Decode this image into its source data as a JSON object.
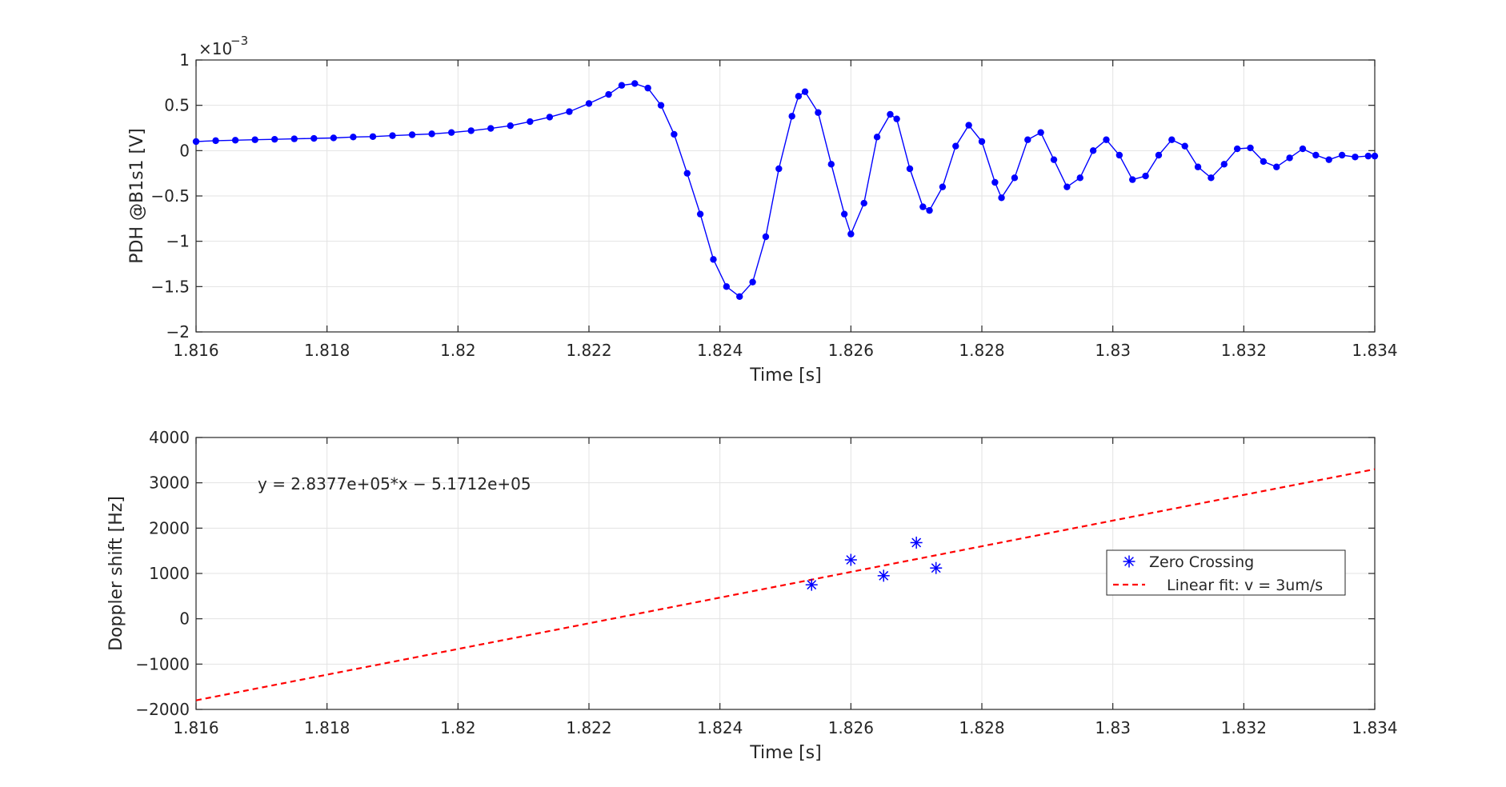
{
  "chart_data": [
    {
      "type": "line",
      "xlabel": "Time [s]",
      "ylabel": "PDH @B1s1 [V]",
      "exponent_label": "×10",
      "exponent_power": "−3",
      "xlim": [
        1.816,
        1.834
      ],
      "ylim": [
        -2,
        1
      ],
      "xticks": [
        "1.816",
        "1.818",
        "1.82",
        "1.822",
        "1.824",
        "1.826",
        "1.828",
        "1.83",
        "1.832",
        "1.834"
      ],
      "yticks": [
        "1",
        "0.5",
        "0",
        "−0.5",
        "−1",
        "−1.5",
        "−2"
      ],
      "grid": true,
      "series": [
        {
          "color": "#0000ff",
          "marker": "dot",
          "points": [
            [
              1.816,
              0.1
            ],
            [
              1.8163,
              0.11
            ],
            [
              1.8166,
              0.115
            ],
            [
              1.8169,
              0.12
            ],
            [
              1.8172,
              0.125
            ],
            [
              1.8175,
              0.13
            ],
            [
              1.8178,
              0.135
            ],
            [
              1.8181,
              0.14
            ],
            [
              1.8184,
              0.15
            ],
            [
              1.8187,
              0.155
            ],
            [
              1.819,
              0.165
            ],
            [
              1.8193,
              0.175
            ],
            [
              1.8196,
              0.185
            ],
            [
              1.8199,
              0.2
            ],
            [
              1.8202,
              0.22
            ],
            [
              1.8205,
              0.245
            ],
            [
              1.8208,
              0.275
            ],
            [
              1.8211,
              0.32
            ],
            [
              1.8214,
              0.37
            ],
            [
              1.8217,
              0.43
            ],
            [
              1.822,
              0.52
            ],
            [
              1.8223,
              0.62
            ],
            [
              1.8225,
              0.72
            ],
            [
              1.8227,
              0.74
            ],
            [
              1.8229,
              0.69
            ],
            [
              1.8231,
              0.5
            ],
            [
              1.8233,
              0.18
            ],
            [
              1.8235,
              -0.25
            ],
            [
              1.8237,
              -0.7
            ],
            [
              1.8239,
              -1.2
            ],
            [
              1.8241,
              -1.5
            ],
            [
              1.8243,
              -1.61
            ],
            [
              1.8245,
              -1.45
            ],
            [
              1.8247,
              -0.95
            ],
            [
              1.8249,
              -0.2
            ],
            [
              1.8251,
              0.38
            ],
            [
              1.8252,
              0.6
            ],
            [
              1.8253,
              0.65
            ],
            [
              1.8255,
              0.42
            ],
            [
              1.8257,
              -0.15
            ],
            [
              1.8259,
              -0.7
            ],
            [
              1.826,
              -0.92
            ],
            [
              1.8262,
              -0.58
            ],
            [
              1.8264,
              0.15
            ],
            [
              1.8266,
              0.4
            ],
            [
              1.8267,
              0.35
            ],
            [
              1.8269,
              -0.2
            ],
            [
              1.8271,
              -0.62
            ],
            [
              1.8272,
              -0.66
            ],
            [
              1.8274,
              -0.4
            ],
            [
              1.8276,
              0.05
            ],
            [
              1.8278,
              0.28
            ],
            [
              1.828,
              0.1
            ],
            [
              1.8282,
              -0.35
            ],
            [
              1.8283,
              -0.52
            ],
            [
              1.8285,
              -0.3
            ],
            [
              1.8287,
              0.12
            ],
            [
              1.8289,
              0.2
            ],
            [
              1.8291,
              -0.1
            ],
            [
              1.8293,
              -0.4
            ],
            [
              1.8295,
              -0.3
            ],
            [
              1.8297,
              0.0
            ],
            [
              1.8299,
              0.12
            ],
            [
              1.8301,
              -0.05
            ],
            [
              1.8303,
              -0.32
            ],
            [
              1.8305,
              -0.28
            ],
            [
              1.8307,
              -0.05
            ],
            [
              1.8309,
              0.12
            ],
            [
              1.8311,
              0.05
            ],
            [
              1.8313,
              -0.18
            ],
            [
              1.8315,
              -0.3
            ],
            [
              1.8317,
              -0.15
            ],
            [
              1.8319,
              0.02
            ],
            [
              1.8321,
              0.03
            ],
            [
              1.8323,
              -0.12
            ],
            [
              1.8325,
              -0.18
            ],
            [
              1.8327,
              -0.08
            ],
            [
              1.8329,
              0.02
            ],
            [
              1.8331,
              -0.05
            ],
            [
              1.8333,
              -0.1
            ],
            [
              1.8335,
              -0.05
            ],
            [
              1.8337,
              -0.07
            ],
            [
              1.8339,
              -0.06
            ],
            [
              1.834,
              -0.06
            ]
          ]
        }
      ]
    },
    {
      "type": "scatter",
      "xlabel": "Time [s]",
      "ylabel": "Doppler shift [Hz]",
      "xlim": [
        1.816,
        1.834
      ],
      "ylim": [
        -2000,
        4000
      ],
      "xticks": [
        "1.816",
        "1.818",
        "1.82",
        "1.822",
        "1.824",
        "1.826",
        "1.828",
        "1.83",
        "1.832",
        "1.834"
      ],
      "yticks": [
        "4000",
        "3000",
        "2000",
        "1000",
        "0",
        "−1000",
        "−2000"
      ],
      "grid": true,
      "annotation": "y = 2.8377e+05*x − 5.1712e+05",
      "legend_position": "right",
      "series": [
        {
          "name": "Zero Crossing",
          "color": "#0000ff",
          "marker": "asterisk",
          "points": [
            [
              1.8254,
              750
            ],
            [
              1.826,
              1300
            ],
            [
              1.8265,
              950
            ],
            [
              1.827,
              1680
            ],
            [
              1.8273,
              1120
            ]
          ]
        },
        {
          "name": "Linear fit: v = 3um/s",
          "color": "#ff0000",
          "line": "dashed",
          "points": [
            [
              1.816,
              -1800
            ],
            [
              1.834,
              3300
            ]
          ]
        }
      ]
    }
  ]
}
